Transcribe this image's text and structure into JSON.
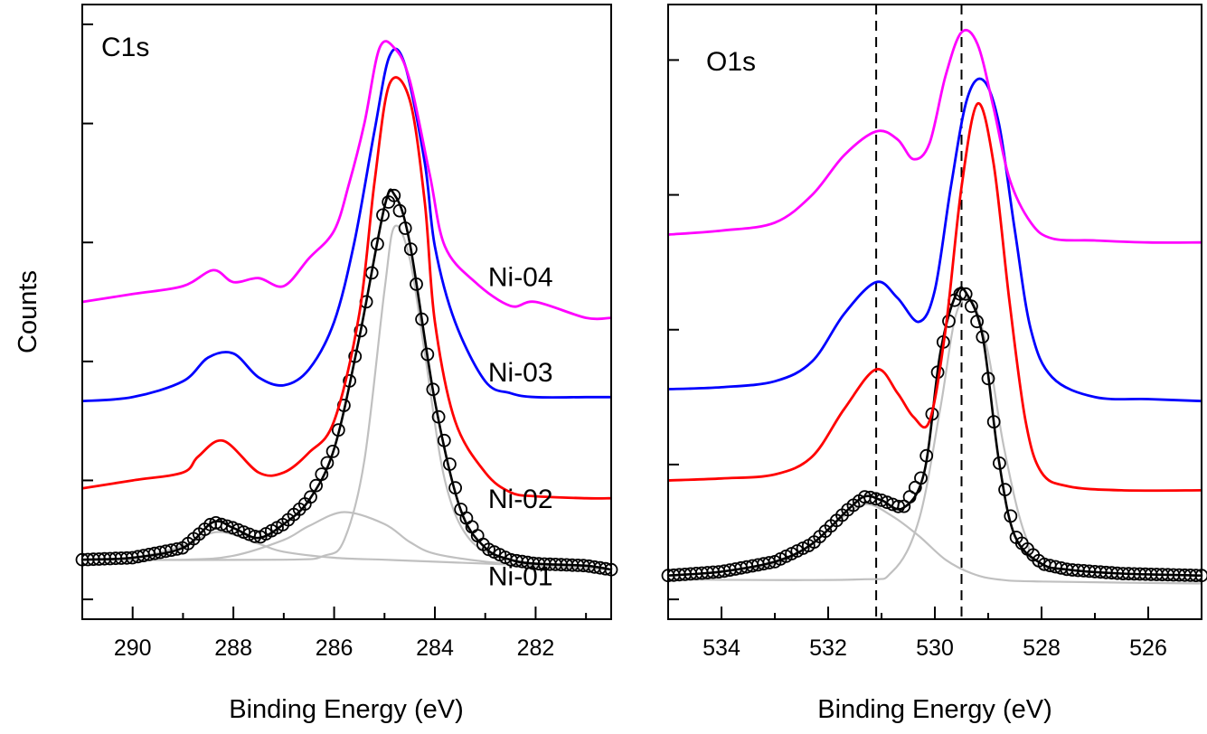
{
  "shared": {
    "ylabel": "Counts",
    "colors": {
      "Ni-01": "#000000",
      "Ni-02": "#ff0000",
      "Ni-03": "#0000ff",
      "Ni-04": "#ff00ff",
      "components": "#c0c0c0"
    }
  },
  "chart_data": [
    {
      "type": "line",
      "panel": "C1s",
      "title": "C1s",
      "xlabel": "Binding Energy (eV)",
      "ylabel": "Counts",
      "xlim": [
        291,
        280.5
      ],
      "x_reversed": true,
      "ylim": [
        -0.5,
        15
      ],
      "xticks": [
        290,
        288,
        286,
        284,
        282
      ],
      "xtick_labels": [
        "290",
        "288",
        "286",
        "284",
        "282"
      ],
      "y_ticks_unlabeled": [
        0,
        3,
        6,
        9,
        12,
        14.5
      ],
      "grid": false,
      "series": [
        {
          "name": "Ni-01",
          "color": "#000000",
          "style": "open-circle markers with fit line",
          "baseline": 1.0,
          "x": [
            291,
            290,
            289,
            288.4,
            288,
            287.5,
            287,
            286.5,
            286,
            285.5,
            285,
            284.8,
            284.5,
            284,
            283.5,
            283,
            282.5,
            282,
            281,
            280.5
          ],
          "y": [
            1.0,
            1.05,
            1.3,
            1.95,
            1.8,
            1.55,
            1.9,
            2.5,
            3.8,
            6.6,
            9.9,
            10.2,
            9.0,
            5.0,
            2.3,
            1.3,
            1.0,
            0.9,
            0.85,
            0.75
          ]
        },
        {
          "name": "Ni-01 component 288.3 eV",
          "color": "#c0c0c0",
          "style": "component",
          "x": [
            291,
            290,
            289,
            288.3,
            287.5,
            287,
            286,
            285,
            284,
            282,
            280.5
          ],
          "y": [
            1.0,
            1.05,
            1.35,
            1.7,
            1.4,
            1.2,
            1.05,
            1.0,
            0.95,
            0.85,
            0.75
          ]
        },
        {
          "name": "Ni-01 component 285.8 eV",
          "color": "#c0c0c0",
          "style": "component",
          "x": [
            291,
            289,
            288,
            287,
            286.5,
            285.8,
            285,
            284.5,
            284,
            283,
            282,
            280.5
          ],
          "y": [
            1.0,
            1.0,
            1.1,
            1.5,
            1.85,
            2.2,
            1.9,
            1.45,
            1.15,
            0.95,
            0.85,
            0.75
          ]
        },
        {
          "name": "Ni-01 component 284.8 eV",
          "color": "#c0c0c0",
          "style": "component",
          "x": [
            291,
            287,
            286.2,
            285.8,
            285.4,
            285,
            284.8,
            284.5,
            284.2,
            283.8,
            283.3,
            282.5,
            282,
            280.5
          ],
          "y": [
            1.0,
            1.0,
            1.1,
            1.5,
            3.5,
            7.8,
            9.4,
            8.6,
            6.2,
            3.0,
            1.5,
            1.0,
            0.9,
            0.75
          ]
        },
        {
          "name": "Ni-02",
          "color": "#ff0000",
          "style": "line",
          "baseline": 2.8,
          "x": [
            291,
            290,
            289,
            288.7,
            288.2,
            287.5,
            287,
            286.5,
            286,
            285.5,
            285.2,
            284.9,
            284.5,
            284.2,
            284,
            283.6,
            283,
            282.5,
            282,
            281,
            280.5
          ],
          "y": [
            2.8,
            3.0,
            3.2,
            3.6,
            4.0,
            3.2,
            3.2,
            3.7,
            4.5,
            7.2,
            10.5,
            13.0,
            12.6,
            10.0,
            7.0,
            4.5,
            3.2,
            2.7,
            2.6,
            2.55,
            2.55
          ]
        },
        {
          "name": "Ni-03",
          "color": "#0000ff",
          "style": "line",
          "baseline": 5.0,
          "x": [
            291,
            290,
            289,
            288.5,
            288,
            287.5,
            287,
            286.5,
            286,
            285.6,
            285.2,
            284.9,
            284.6,
            284.2,
            284,
            283.6,
            283,
            282.5,
            282,
            281,
            280.5
          ],
          "y": [
            5.0,
            5.1,
            5.5,
            6.1,
            6.2,
            5.6,
            5.4,
            5.8,
            7.0,
            9.0,
            11.8,
            13.7,
            13.5,
            11.0,
            8.9,
            7.0,
            5.5,
            5.2,
            5.1,
            5.1,
            5.1
          ]
        },
        {
          "name": "Ni-04",
          "color": "#ff00ff",
          "style": "line",
          "baseline": 7.5,
          "x": [
            291,
            290,
            289,
            288.4,
            288,
            287.5,
            287,
            286.5,
            286,
            285.7,
            285.4,
            285.1,
            284.8,
            284.5,
            284.1,
            283.8,
            283.2,
            282.5,
            282,
            281,
            280.5
          ],
          "y": [
            7.5,
            7.7,
            7.9,
            8.3,
            8.0,
            8.1,
            7.9,
            8.6,
            9.3,
            10.5,
            12.0,
            13.9,
            13.9,
            13.1,
            10.7,
            8.9,
            8.0,
            7.4,
            7.5,
            7.1,
            7.1
          ]
        }
      ],
      "labels": [
        {
          "text": "Ni-04",
          "x": 282.3,
          "y": 7.9
        },
        {
          "text": "Ni-03",
          "x": 282.3,
          "y": 5.5
        },
        {
          "text": "Ni-02",
          "x": 282.3,
          "y": 2.3
        },
        {
          "text": "Ni-01",
          "x": 282.3,
          "y": 0.35
        }
      ]
    },
    {
      "type": "line",
      "panel": "O1s",
      "title": "O1s",
      "xlabel": "Binding Energy (eV)",
      "ylabel": "",
      "xlim": [
        535,
        525
      ],
      "x_reversed": true,
      "ylim": [
        -0.5,
        15
      ],
      "xticks": [
        534,
        532,
        530,
        528,
        526
      ],
      "xtick_labels": [
        "534",
        "532",
        "530",
        "528",
        "526"
      ],
      "y_ticks_unlabeled": [
        0,
        3.4,
        6.8,
        10.2,
        13.6
      ],
      "grid": false,
      "reference_lines": [
        531.1,
        529.5
      ],
      "series": [
        {
          "name": "Ni-01",
          "color": "#000000",
          "style": "open-circle markers with fit line",
          "baseline": 0.6,
          "x": [
            535,
            534,
            533,
            532.3,
            531.6,
            531.3,
            531,
            530.6,
            530.2,
            529.9,
            529.6,
            529.4,
            529.1,
            528.8,
            528.5,
            528,
            527.5,
            526.5,
            525
          ],
          "y": [
            0.6,
            0.7,
            0.95,
            1.4,
            2.3,
            2.6,
            2.5,
            2.3,
            3.2,
            6.2,
            7.7,
            7.7,
            6.6,
            3.5,
            1.6,
            0.9,
            0.75,
            0.65,
            0.6
          ]
        },
        {
          "name": "Ni-01 component 531.3 eV",
          "color": "#c0c0c0",
          "style": "component",
          "x": [
            535,
            534,
            533,
            532.3,
            531.8,
            531.3,
            530.8,
            530.3,
            529.8,
            529.3,
            528.8,
            528,
            525
          ],
          "y": [
            0.5,
            0.6,
            0.9,
            1.4,
            2.0,
            2.4,
            2.1,
            1.6,
            1.0,
            0.65,
            0.5,
            0.45,
            0.4
          ]
        },
        {
          "name": "Ni-01 component 529.5 eV",
          "color": "#c0c0c0",
          "style": "component",
          "x": [
            535,
            531.5,
            530.8,
            530.3,
            529.9,
            529.6,
            529.3,
            529,
            528.7,
            528.3,
            527.8,
            525
          ],
          "y": [
            0.5,
            0.5,
            0.7,
            2.0,
            4.8,
            7.2,
            7.5,
            6.2,
            3.8,
            1.6,
            0.7,
            0.5
          ]
        },
        {
          "name": "Ni-02",
          "color": "#ff0000",
          "style": "line",
          "baseline": 3.0,
          "x": [
            535,
            534,
            533,
            532.3,
            531.7,
            531.1,
            530.7,
            530.4,
            530.1,
            529.8,
            529.5,
            529.2,
            528.9,
            528.6,
            528.3,
            528,
            527.5,
            526.5,
            525
          ],
          "y": [
            3.0,
            3.05,
            3.15,
            3.6,
            4.8,
            5.8,
            5.2,
            4.6,
            4.5,
            6.8,
            10.4,
            12.5,
            11.0,
            7.5,
            4.5,
            3.2,
            2.85,
            2.75,
            2.75
          ]
        },
        {
          "name": "Ni-03",
          "color": "#0000ff",
          "style": "line",
          "baseline": 5.3,
          "x": [
            535,
            534,
            533,
            532.3,
            531.7,
            531.1,
            530.7,
            530.3,
            530,
            529.7,
            529.4,
            529.1,
            528.8,
            528.5,
            528.2,
            527.8,
            527,
            526,
            525
          ],
          "y": [
            5.3,
            5.35,
            5.5,
            6.0,
            7.2,
            8.0,
            7.6,
            7.0,
            7.8,
            10.4,
            12.6,
            13.1,
            12.0,
            9.3,
            6.8,
            5.6,
            5.1,
            5.05,
            5.0
          ]
        },
        {
          "name": "Ni-04",
          "color": "#ff00ff",
          "style": "line",
          "baseline": 9.2,
          "x": [
            535,
            534,
            533,
            532.3,
            531.7,
            531.1,
            530.7,
            530.4,
            530.1,
            529.8,
            529.5,
            529.2,
            528.9,
            528.6,
            528.2,
            527.8,
            527,
            526,
            525
          ],
          "y": [
            9.2,
            9.3,
            9.5,
            10.2,
            11.2,
            11.8,
            11.6,
            11.1,
            11.5,
            13.2,
            14.3,
            14.0,
            12.4,
            10.6,
            9.5,
            9.1,
            9.05,
            9.0,
            9.0
          ]
        }
      ]
    }
  ]
}
